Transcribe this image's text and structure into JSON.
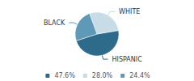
{
  "chart_data": {
    "type": "pie",
    "categories": [
      "HISPANIC",
      "WHITE",
      "BLACK"
    ],
    "values": [
      47.6,
      28.0,
      24.4
    ],
    "value_labels": [
      "47.6%",
      "28.0%",
      "24.4%"
    ],
    "colors": [
      "#2e6b8a",
      "#c8dce8",
      "#5e9ab8"
    ],
    "legend": "bottom"
  }
}
